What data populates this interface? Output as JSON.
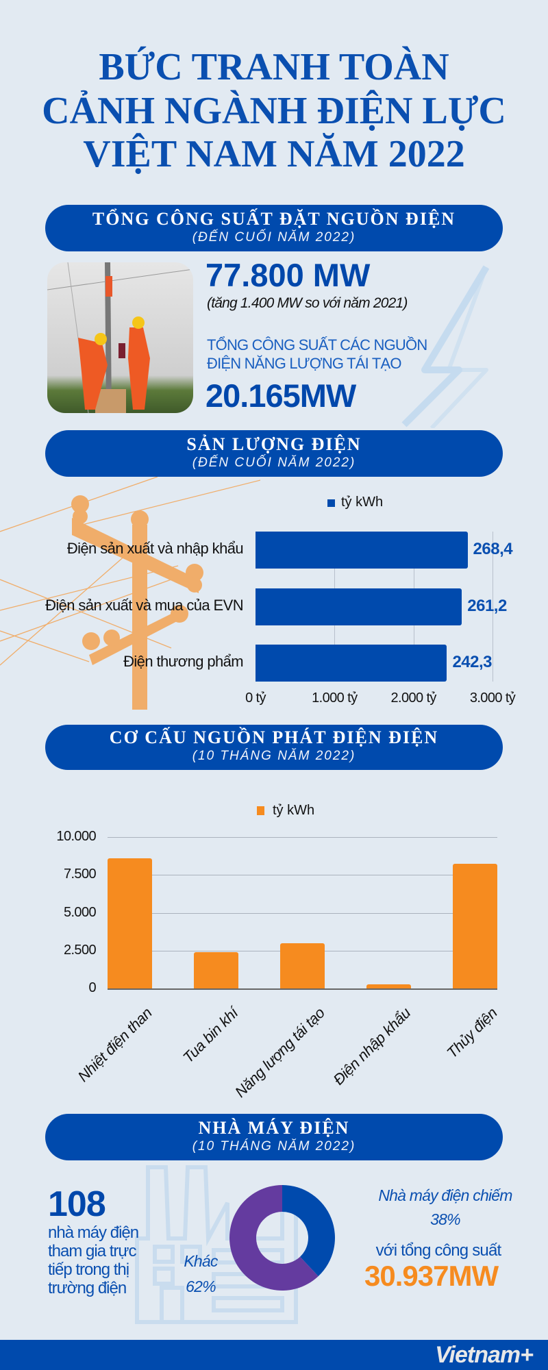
{
  "title": {
    "line1": "BỨC TRANH TOÀN",
    "line2": "CẢNH NGÀNH ĐIỆN LỰC",
    "line3": "VIỆT NAM NĂM 2022"
  },
  "colors": {
    "background": "#e2eaf2",
    "brand_blue": "#004aad",
    "orange": "#f68b1f",
    "purple": "#643b9f",
    "pole": "#f0ad6a"
  },
  "section1": {
    "heading": "TỔNG CÔNG SUẤT ĐẶT NGUỒN ĐIỆN",
    "subheading": "(ĐẾN CUỐI NĂM 2022)",
    "total": "77.800 MW",
    "increase": "(tăng 1.400 MW so với năm 2021)",
    "renewable_label_1": "TỔNG CÔNG SUẤT CÁC NGUỒN",
    "renewable_label_2": "ĐIỆN NĂNG LƯỢNG TÁI TẠO",
    "renewable_value": "20.165MW",
    "icon": "lightning-bolt-icon"
  },
  "section2": {
    "heading": "SẢN LƯỢNG ĐIỆN",
    "subheading": "(ĐẾN CUỐI NĂM 2022)"
  },
  "section3": {
    "heading": "CƠ CẤU NGUỒN PHÁT ĐIỆN ĐIỆN",
    "subheading": "(10 THÁNG NĂM 2022)"
  },
  "section4": {
    "heading": "NHÀ MÁY ĐIỆN",
    "subheading": "(10 THÁNG NĂM 2022)",
    "count": "108",
    "count_desc": [
      "nhà máy điện",
      "tham gia trực",
      "tiếp trong thị",
      "trường điện"
    ],
    "other_label": "Khác",
    "other_pct": "62%",
    "share_label": "Nhà máy điện chiếm",
    "share_pct": "38%",
    "capacity_label": "với tổng công suất",
    "capacity_value": "30.937MW"
  },
  "chart_data": [
    {
      "type": "bar",
      "orientation": "horizontal",
      "legend": "tỷ kWh",
      "legend_position": "top",
      "categories": [
        "Điện sản xuất và nhập khẩu",
        "Điện sản xuất và mua của EVN",
        "Điện thương phẩm"
      ],
      "values": [
        268.4,
        261.2,
        242.3
      ],
      "value_labels": [
        "268,4",
        "261,2",
        "242,3"
      ],
      "tick_labels": [
        "0 tỷ",
        "1.000 tỷ",
        "2.000 tỷ",
        "3.000 tỷ"
      ],
      "grid": true,
      "color": "#004aad"
    },
    {
      "type": "bar",
      "orientation": "vertical",
      "legend": "tỷ kWh",
      "legend_position": "top",
      "categories": [
        "Nhiệt điện than",
        "Tua bin khí",
        "Năng lượng tái tạo",
        "Điện nhập khẩu",
        "Thủy điện"
      ],
      "values": [
        8600,
        2400,
        3000,
        270,
        8250
      ],
      "ylim": [
        0,
        10000
      ],
      "tick_labels": [
        "0",
        "2.500",
        "5.000",
        "7.500",
        "10.000"
      ],
      "grid": true,
      "color": "#f68b1f"
    },
    {
      "type": "pie",
      "donut": true,
      "slices": [
        {
          "label": "Nhà máy điện",
          "value": 38,
          "color": "#004aad"
        },
        {
          "label": "Khác",
          "value": 62,
          "color": "#643b9f"
        }
      ]
    }
  ],
  "footer": {
    "logo": "Vietnam+"
  }
}
